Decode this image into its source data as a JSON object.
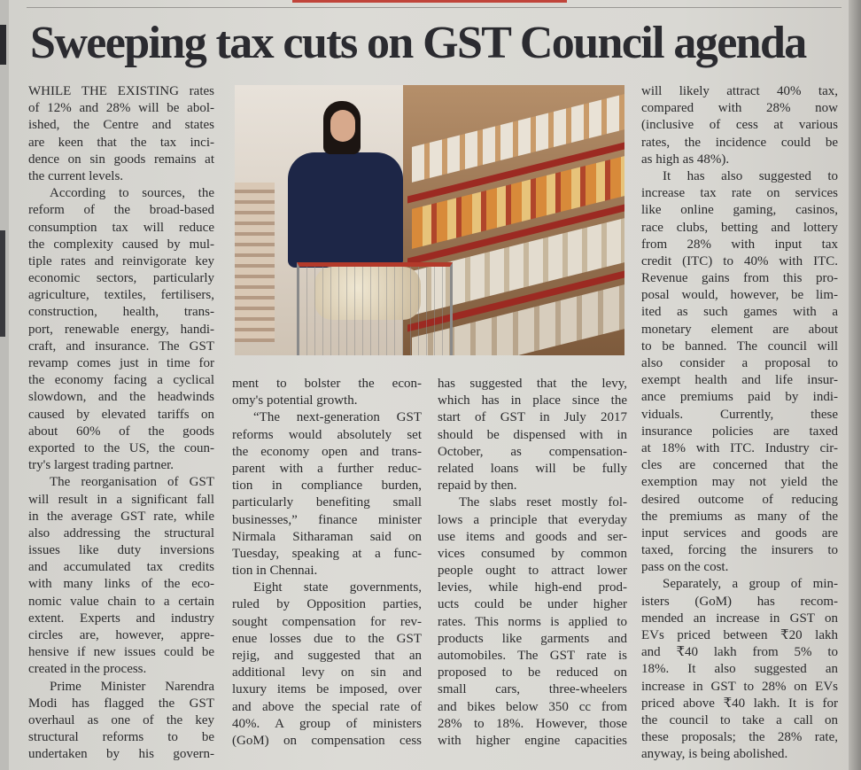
{
  "article": {
    "headline": "Sweeping tax cuts on GST Council agenda",
    "columns": [
      {
        "lines": [
          {
            "t": "WHILE THE EXISTING rates"
          },
          {
            "t": "of 12% and 28% will be abol-"
          },
          {
            "t": "ished, the Centre and states"
          },
          {
            "t": "are keen that the tax inci-"
          },
          {
            "t": "dence on sin goods remains at"
          },
          {
            "t": "the current levels.",
            "end": true
          },
          {
            "t": "According to sources, the",
            "ind": true
          },
          {
            "t": "reform of the broad-based"
          },
          {
            "t": "consumption tax will reduce"
          },
          {
            "t": "the complexity caused by mul-"
          },
          {
            "t": "tiple rates and reinvigorate key"
          },
          {
            "t": "economic sectors, particularly"
          },
          {
            "t": "agriculture, textiles, fertilisers,"
          },
          {
            "t": "construction, health, trans-"
          },
          {
            "t": "port, renewable energy, handi-"
          },
          {
            "t": "craft, and insurance. The GST"
          },
          {
            "t": "revamp comes just in time for"
          },
          {
            "t": "the economy facing a cyclical"
          },
          {
            "t": "slowdown, and the headwinds"
          },
          {
            "t": "caused by elevated tariffs on"
          },
          {
            "t": "about 60% of the goods"
          },
          {
            "t": "exported to the US, the coun-"
          },
          {
            "t": "try's largest trading partner.",
            "end": true
          },
          {
            "t": "The reorganisation of GST",
            "ind": true
          },
          {
            "t": "will result in a significant fall"
          },
          {
            "t": "in the average GST rate, while"
          },
          {
            "t": "also addressing the structural"
          },
          {
            "t": "issues like duty inversions"
          },
          {
            "t": "and accumulated tax credits"
          },
          {
            "t": "with many links of the eco-"
          },
          {
            "t": "nomic value chain to a certain"
          },
          {
            "t": "extent. Experts and industry"
          },
          {
            "t": "circles are, however, appre-"
          },
          {
            "t": "hensive if new issues could be"
          },
          {
            "t": "created in the process.",
            "end": true
          },
          {
            "t": "Prime Minister Narendra",
            "ind": true
          },
          {
            "t": "Modi has flagged the GST"
          },
          {
            "t": "overhaul as one of the key"
          },
          {
            "t": "structural reforms to be"
          },
          {
            "t": "undertaken by his govern-"
          }
        ]
      },
      {
        "lines": [
          {
            "t": "ment to bolster the econ-"
          },
          {
            "t": "omy's potential growth.",
            "end": true
          },
          {
            "t": "“The next-generation GST",
            "ind": true
          },
          {
            "t": "reforms would absolutely set"
          },
          {
            "t": "the economy open and trans-"
          },
          {
            "t": "parent with a further reduc-"
          },
          {
            "t": "tion in compliance burden,"
          },
          {
            "t": "particularly benefiting small"
          },
          {
            "t": "businesses,” finance minister"
          },
          {
            "t": "Nirmala Sitharaman said on"
          },
          {
            "t": "Tuesday, speaking at a func-"
          },
          {
            "t": "tion in Chennai.",
            "end": true
          },
          {
            "t": "Eight state governments,",
            "ind": true
          },
          {
            "t": "ruled by Opposition parties,"
          },
          {
            "t": "sought compensation for rev-"
          },
          {
            "t": "enue losses due to the GST"
          },
          {
            "t": "rejig, and suggested that an"
          },
          {
            "t": "additional levy on sin and"
          },
          {
            "t": "luxury items be imposed, over"
          },
          {
            "t": "and above the special rate of"
          },
          {
            "t": "40%. A group of ministers"
          },
          {
            "t": "(GoM) on compensation cess"
          }
        ]
      },
      {
        "lines": [
          {
            "t": "has suggested that the levy,"
          },
          {
            "t": "which has in place since the"
          },
          {
            "t": "start of GST in July 2017"
          },
          {
            "t": "should be dispensed with in"
          },
          {
            "t": "October, as compensation-"
          },
          {
            "t": "related loans will be fully"
          },
          {
            "t": "repaid by then.",
            "end": true
          },
          {
            "t": "The slabs reset mostly fol-",
            "ind": true
          },
          {
            "t": "lows a principle that everyday"
          },
          {
            "t": "use items and goods and ser-"
          },
          {
            "t": "vices consumed by common"
          },
          {
            "t": "people ought to attract lower"
          },
          {
            "t": "levies, while high-end prod-"
          },
          {
            "t": "ucts could be under higher"
          },
          {
            "t": "rates. This norms is applied to"
          },
          {
            "t": "products like garments and"
          },
          {
            "t": "automobiles. The GST rate is"
          },
          {
            "t": "proposed to be reduced on"
          },
          {
            "t": "small cars, three-wheelers"
          },
          {
            "t": "and bikes below 350 cc from"
          },
          {
            "t": "28% to 18%. However, those"
          },
          {
            "t": "with higher engine capacities"
          }
        ]
      },
      {
        "lines": [
          {
            "t": "will likely attract 40% tax,"
          },
          {
            "t": "compared with 28% now"
          },
          {
            "t": "(inclusive of cess at various"
          },
          {
            "t": "rates, the incidence could be"
          },
          {
            "t": "as high as 48%).",
            "end": true
          },
          {
            "t": "It has also suggested to",
            "ind": true
          },
          {
            "t": "increase tax rate on services"
          },
          {
            "t": "like online gaming, casinos,"
          },
          {
            "t": "race clubs, betting and lottery"
          },
          {
            "t": "from 28% with input tax"
          },
          {
            "t": "credit (ITC) to 40% with ITC."
          },
          {
            "t": "Revenue gains from this pro-"
          },
          {
            "t": "posal would, however, be lim-"
          },
          {
            "t": "ited as such games with a"
          },
          {
            "t": "monetary element are about"
          },
          {
            "t": "to be banned. The council will"
          },
          {
            "t": "also consider a proposal to"
          },
          {
            "t": "exempt health and life insur-"
          },
          {
            "t": "ance premiums paid by indi-"
          },
          {
            "t": "viduals. Currently, these"
          },
          {
            "t": "insurance policies are taxed"
          },
          {
            "t": "at 18% with ITC. Industry cir-"
          },
          {
            "t": "cles are concerned that the"
          },
          {
            "t": "exemption may not yield the"
          },
          {
            "t": "desired outcome of reducing"
          },
          {
            "t": "the premiums as many of the"
          },
          {
            "t": "input services and goods are"
          },
          {
            "t": "taxed, forcing the insurers to"
          },
          {
            "t": "pass on the cost.",
            "end": true
          },
          {
            "t": "Separately, a group of min-",
            "ind": true
          },
          {
            "t": "isters (GoM) has recom-"
          },
          {
            "t": "mended an increase in GST on"
          },
          {
            "t": "EVs priced between ₹20 lakh"
          },
          {
            "t": "and ₹40 lakh from 5% to"
          },
          {
            "t": "18%. It also suggested an"
          },
          {
            "t": "increase in GST to 28% on EVs"
          },
          {
            "t": "priced above ₹40 lakh. It is for"
          },
          {
            "t": "the council to take a call on"
          },
          {
            "t": "these proposals; the 28% rate,"
          },
          {
            "t": "anyway, is being abolished.",
            "end": true
          }
        ]
      }
    ]
  },
  "colors": {
    "paper": "#d8d7d2",
    "ink": "#2a2a2c",
    "accent": "#c0443a"
  }
}
